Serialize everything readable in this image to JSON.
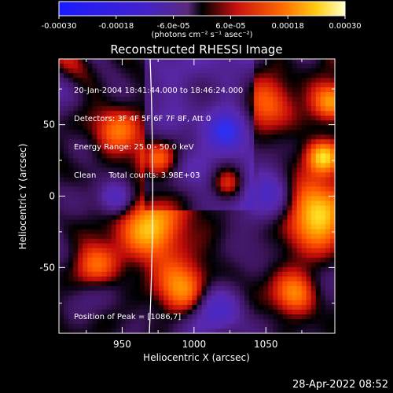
{
  "colorbar": {
    "tick_labels": [
      "-0.00030",
      "-0.00018",
      "-6.0e-05",
      "6.0e-05",
      "0.00018",
      "0.00030"
    ],
    "units_label": "(photons cm⁻² s⁻¹ asec⁻²)",
    "range": [
      -0.0003,
      0.0003
    ]
  },
  "chart_data": {
    "type": "heatmap",
    "title": "Reconstructed RHESSI Image",
    "xlabel": "Heliocentric X (arcsec)",
    "ylabel": "Heliocentric Y (arcsec)",
    "xlim": [
      906,
      1098
    ],
    "ylim": [
      -96,
      96
    ],
    "x_ticks": [
      950,
      1000,
      1050
    ],
    "y_ticks": [
      -50,
      0,
      50
    ],
    "x_tick_labels": [
      "950",
      "1000",
      "1050"
    ],
    "y_tick_labels": [
      "-50",
      "0",
      "50"
    ],
    "annotations": [
      "20-Jan-2004 18:41:44.000 to 18:46:24.000",
      "Detectors: 3F 4F 5F 6F 7F 8F, Att 0",
      "Energy Range: 25.0 - 50.0 keV",
      "Clean     Total counts: 3.98E+03"
    ],
    "peak_label": "Position of Peak = [1086,7]",
    "limb": "white curve near x ≈ 972 arcsec",
    "colormap": "blue-purple-black-red-orange-yellow-white"
  },
  "timestamp": "28-Apr-2022 08:52"
}
